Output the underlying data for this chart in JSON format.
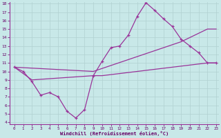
{
  "background_color": "#c8e8e8",
  "line_color": "#993399",
  "grid_color": "#b0d0d0",
  "xlabel": "Windchill (Refroidissement éolien,°C)",
  "xmin": 0,
  "xmax": 23,
  "ymin": 4,
  "ymax": 18,
  "yticks": [
    4,
    5,
    6,
    7,
    8,
    9,
    10,
    11,
    12,
    13,
    14,
    15,
    16,
    17,
    18
  ],
  "xticks": [
    0,
    1,
    2,
    3,
    4,
    5,
    6,
    7,
    8,
    9,
    10,
    11,
    12,
    13,
    14,
    15,
    16,
    17,
    18,
    19,
    20,
    21,
    22,
    23
  ],
  "main_x": [
    0,
    1,
    2,
    3,
    4,
    5,
    6,
    7,
    8,
    9,
    10,
    11,
    12,
    13,
    14,
    15,
    16,
    17,
    18,
    19,
    20,
    21,
    22,
    23
  ],
  "main_y": [
    10.5,
    10.0,
    8.8,
    7.2,
    7.5,
    7.0,
    5.3,
    4.5,
    5.5,
    9.5,
    11.2,
    12.8,
    13.0,
    14.3,
    16.5,
    18.1,
    17.2,
    16.2,
    15.3,
    13.8,
    13.0,
    12.2,
    11.0,
    11.0
  ],
  "diag1_x": [
    0,
    9,
    19,
    22,
    23
  ],
  "diag1_y": [
    10.5,
    10.0,
    13.5,
    15.0,
    15.0
  ],
  "diag2_x": [
    0,
    2,
    9,
    10,
    22,
    23
  ],
  "diag2_y": [
    10.5,
    9.0,
    9.5,
    9.5,
    11.0,
    11.0
  ]
}
